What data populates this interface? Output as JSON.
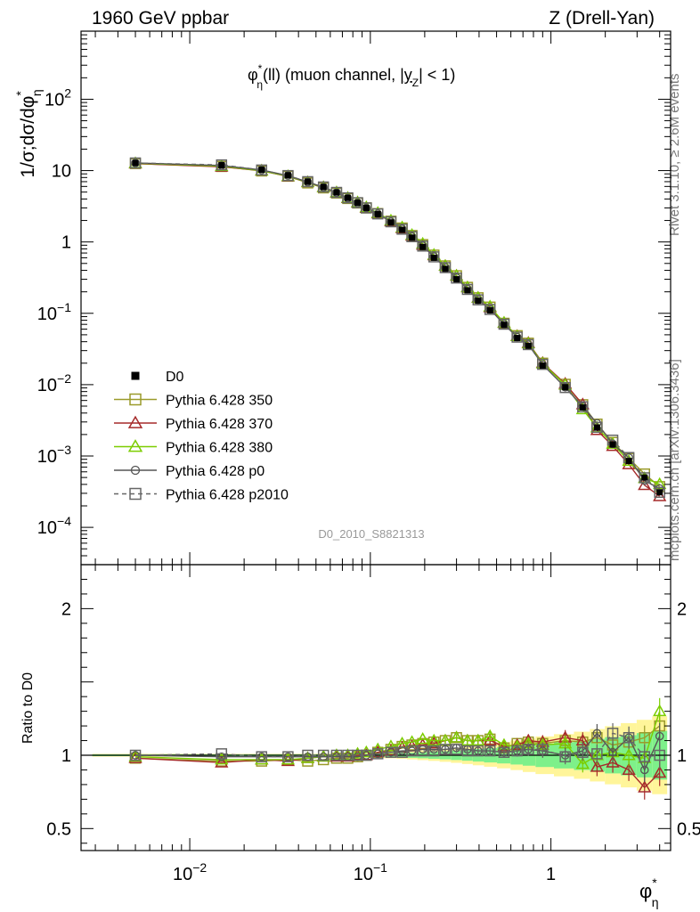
{
  "header": {
    "left": "1960 GeV ppbar",
    "right": "Z (Drell-Yan)"
  },
  "side_texts": {
    "rivet": "Rivet 3.1.10, ≥ 2.6M events",
    "mcplots": "mcplots.cern.ch [arXiv:1306.3436]"
  },
  "chart_data": {
    "type": "line",
    "title": "φ*η(ll) (muon channel, |yZ| < 1)",
    "title_parts": {
      "phi": "φ",
      "star": "*",
      "eta": "η",
      "rest1": "(ll) (muon channel, |",
      "y": "y",
      "sub": "Z",
      "rest2": "| < 1)"
    },
    "analysis_id": "D0_2010_S8821313",
    "ylabel": "1/σ;dσ/dφ*η",
    "ylabel_parts": {
      "main": "1/σ;dσ/dφ",
      "star": "*",
      "sub": "η"
    },
    "xlabel_parts": {
      "main": "φ",
      "star": "*",
      "sub": "η"
    },
    "ratio_ylabel": "Ratio to D0",
    "x_scale": "log",
    "y_scale": "log",
    "xlim": [
      0.0025,
      4.6
    ],
    "ylim": [
      3e-05,
      900
    ],
    "ratio_ylim": [
      0.35,
      2.3
    ],
    "x_ticks": [
      {
        "value": 0.01,
        "base": "10",
        "exp": "−2"
      },
      {
        "value": 0.1,
        "base": "10",
        "exp": "−1"
      },
      {
        "value": 1,
        "base": "1",
        "exp": ""
      }
    ],
    "y_ticks": [
      {
        "value": 100,
        "base": "10",
        "exp": "2"
      },
      {
        "value": 10,
        "base": "10",
        "exp": ""
      },
      {
        "value": 1,
        "base": "1",
        "exp": ""
      },
      {
        "value": 0.1,
        "base": "10",
        "exp": "−1"
      },
      {
        "value": 0.01,
        "base": "10",
        "exp": "−2"
      },
      {
        "value": 0.001,
        "base": "10",
        "exp": "−3"
      },
      {
        "value": 0.0001,
        "base": "10",
        "exp": "−4"
      }
    ],
    "ratio_ticks": [
      {
        "value": 2,
        "label": "2"
      },
      {
        "value": 1,
        "label": "1"
      },
      {
        "value": 0.5,
        "label": "0.5"
      }
    ],
    "x": [
      0.005,
      0.015,
      0.025,
      0.035,
      0.045,
      0.055,
      0.065,
      0.075,
      0.085,
      0.095,
      0.11,
      0.13,
      0.15,
      0.17,
      0.195,
      0.225,
      0.26,
      0.3,
      0.345,
      0.395,
      0.46,
      0.55,
      0.65,
      0.75,
      0.9,
      1.2,
      1.5,
      1.8,
      2.2,
      2.7,
      3.3,
      4.0
    ],
    "data_series": {
      "name": "D0",
      "color": "#000000",
      "values": [
        12.8,
        11.9,
        10.3,
        8.6,
        7.0,
        5.9,
        4.95,
        4.15,
        3.55,
        3.0,
        2.45,
        1.88,
        1.48,
        1.15,
        0.85,
        0.6,
        0.42,
        0.3,
        0.21,
        0.15,
        0.11,
        0.069,
        0.045,
        0.035,
        0.0185,
        0.0092,
        0.0048,
        0.0025,
        0.00145,
        0.00085,
        0.0005,
        0.00031
      ]
    },
    "series": [
      {
        "name": "Pythia 6.428 350",
        "color": "#9a9a2a",
        "marker": "square-open",
        "dash": false,
        "ratio": [
          0.98,
          0.96,
          0.96,
          0.97,
          0.96,
          0.97,
          0.98,
          0.98,
          0.99,
          1.0,
          1.02,
          1.04,
          1.06,
          1.07,
          1.08,
          1.09,
          1.1,
          1.12,
          1.1,
          1.1,
          1.11,
          1.05,
          1.08,
          1.09,
          1.08,
          1.1,
          1.09,
          1.12,
          1.07,
          1.09,
          1.12,
          1.2
        ]
      },
      {
        "name": "Pythia 6.428 370",
        "color": "#a52a2a",
        "marker": "triangle-open",
        "dash": false,
        "ratio": [
          0.98,
          0.95,
          0.97,
          0.96,
          0.98,
          0.99,
          0.99,
          0.99,
          1.0,
          1.0,
          1.02,
          1.03,
          1.05,
          1.06,
          1.07,
          1.08,
          1.1,
          1.12,
          1.1,
          1.1,
          1.1,
          1.06,
          1.07,
          1.1,
          1.09,
          1.12,
          1.1,
          0.92,
          0.95,
          0.9,
          0.78,
          0.88
        ]
      },
      {
        "name": "Pythia 6.428 380",
        "color": "#7ccd00",
        "marker": "triangle-open",
        "dash": false,
        "ratio": [
          0.99,
          0.97,
          0.97,
          0.97,
          0.98,
          0.99,
          1.0,
          1.0,
          1.01,
          1.02,
          1.04,
          1.06,
          1.08,
          1.09,
          1.11,
          1.1,
          1.1,
          1.12,
          1.1,
          1.1,
          1.13,
          1.07,
          1.06,
          1.08,
          1.07,
          1.08,
          0.94,
          1.0,
          1.02,
          1.0,
          0.98,
          1.3
        ]
      },
      {
        "name": "Pythia 6.428 p0",
        "color": "#555555",
        "marker": "circle-open",
        "dash": false,
        "ratio": [
          1.0,
          0.99,
          0.99,
          0.99,
          0.99,
          0.99,
          0.99,
          0.99,
          0.99,
          1.0,
          1.01,
          1.02,
          1.03,
          1.03,
          1.04,
          1.04,
          1.04,
          1.05,
          1.04,
          1.03,
          1.03,
          1.02,
          1.03,
          1.04,
          1.03,
          1.0,
          1.03,
          1.15,
          1.02,
          1.12,
          0.9,
          1.13
        ]
      },
      {
        "name": "Pythia 6.428 p2010",
        "color": "#666666",
        "marker": "square-open",
        "dash": true,
        "ratio": [
          1.0,
          1.01,
          0.99,
          0.99,
          1.0,
          1.0,
          1.0,
          1.0,
          1.0,
          1.0,
          1.01,
          1.02,
          1.02,
          1.03,
          1.03,
          1.03,
          1.04,
          1.04,
          1.03,
          1.03,
          1.03,
          1.02,
          1.03,
          1.04,
          1.04,
          0.99,
          1.02,
          1.01,
          1.15,
          1.12,
          0.99,
          1.0
        ]
      }
    ],
    "legend_placement": "bottom-left",
    "grid": false
  }
}
